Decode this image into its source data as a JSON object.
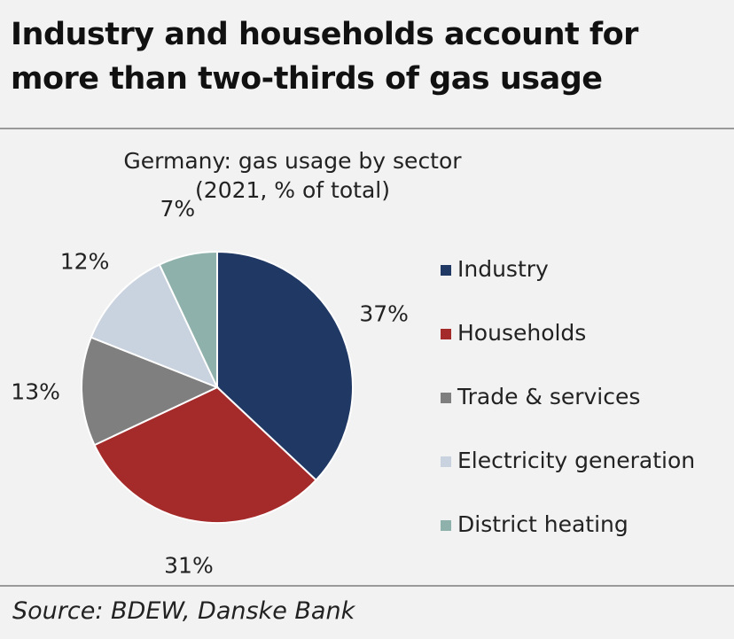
{
  "headline": {
    "line1": "Industry and households account for",
    "line2": "more than two-thirds of gas usage"
  },
  "chart_data": {
    "type": "pie",
    "title": "Germany: gas usage by sector",
    "subtitle": "(2021, % of total)",
    "categories": [
      "Industry",
      "Households",
      "Trade & services",
      "Electricity generation",
      "District heating"
    ],
    "values": [
      37,
      31,
      13,
      12,
      7
    ],
    "value_labels": [
      "37%",
      "31%",
      "13%",
      "12%",
      "7%"
    ],
    "colors": [
      "#203864",
      "#a52a2a",
      "#7f7f7f",
      "#c9d2df",
      "#8fb1ab"
    ],
    "legend_position": "right"
  },
  "source": "Source: BDEW, Danske Bank"
}
